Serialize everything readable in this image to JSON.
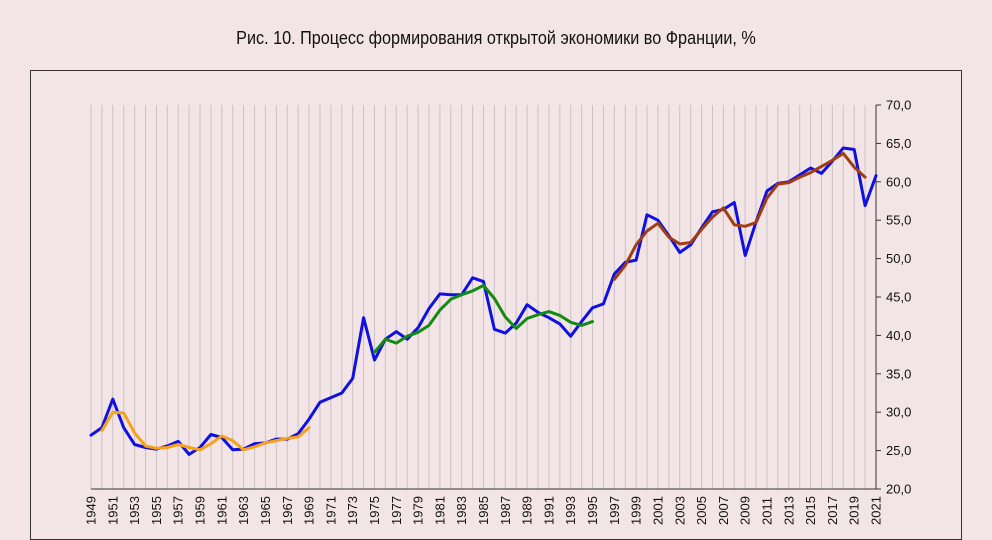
{
  "chart_data": {
    "type": "line",
    "title": "Рис. 10. Процесс формирования открытой экономики во Франции, %",
    "xlabel": "",
    "ylabel": "",
    "ylim": [
      20,
      70
    ],
    "yticks": [
      20,
      25,
      30,
      35,
      40,
      45,
      50,
      55,
      60,
      65,
      70
    ],
    "ytick_labels": [
      "20,0",
      "25,0",
      "30,0",
      "35,0",
      "40,0",
      "45,0",
      "50,0",
      "55,0",
      "60,0",
      "65,0",
      "70,0"
    ],
    "y_axis_side": "right",
    "xlim": [
      1949,
      2021
    ],
    "xtick_labels": [
      "1949",
      "1951",
      "1953",
      "1955",
      "1957",
      "1959",
      "1961",
      "1963",
      "1965",
      "1967",
      "1969",
      "1971",
      "1973",
      "1975",
      "1977",
      "1979",
      "1981",
      "1983",
      "1985",
      "1987",
      "1989",
      "1991",
      "1993",
      "1995",
      "1997",
      "1999",
      "2001",
      "2003",
      "2005",
      "2007",
      "2009",
      "2011",
      "2013",
      "2015",
      "2017",
      "2019",
      "2021"
    ],
    "grid": true,
    "legend": "none",
    "series": [
      {
        "color": "#1010e0",
        "x": [
          1949,
          1950,
          1951,
          1952,
          1953,
          1954,
          1955,
          1956,
          1957,
          1958,
          1959,
          1960,
          1961,
          1962,
          1963,
          1964,
          1965,
          1966,
          1967,
          1968,
          1969,
          1970,
          1971,
          1972,
          1973,
          1974,
          1975,
          1976,
          1977,
          1978,
          1979,
          1980,
          1981,
          1982,
          1983,
          1984,
          1985,
          1986,
          1987,
          1988,
          1989,
          1990,
          1991,
          1992,
          1993,
          1994,
          1995,
          1996,
          1997,
          1998,
          1999,
          2000,
          2001,
          2002,
          2003,
          2004,
          2005,
          2006,
          2007,
          2008,
          2009,
          2010,
          2011,
          2012,
          2013,
          2014,
          2015,
          2016,
          2017,
          2018,
          2019,
          2020,
          2021
        ],
        "values": [
          27.0,
          28.0,
          31.7,
          28.0,
          25.8,
          25.4,
          25.2,
          25.6,
          26.2,
          24.5,
          25.4,
          27.1,
          26.7,
          25.1,
          25.2,
          25.9,
          26.0,
          26.5,
          26.5,
          27.2,
          29.1,
          31.3,
          31.9,
          32.5,
          34.4,
          42.3,
          36.8,
          39.5,
          40.5,
          39.5,
          41.0,
          43.5,
          45.4,
          45.3,
          45.3,
          47.5,
          47.0,
          40.8,
          40.3,
          41.6,
          44.0,
          43.0,
          42.3,
          41.5,
          39.9,
          41.8,
          43.6,
          44.1,
          48.0,
          49.5,
          49.8,
          55.7,
          55.0,
          53.0,
          50.8,
          51.8,
          54.0,
          56.1,
          56.4,
          57.3,
          50.4,
          54.8,
          58.8,
          59.8,
          60.0,
          60.9,
          61.8,
          61.1,
          62.7,
          64.4,
          64.2,
          56.9,
          60.8
        ]
      },
      {
        "color": "#f5a21a",
        "x": [
          1950,
          1951,
          1952,
          1953,
          1954,
          1955,
          1956,
          1957,
          1958,
          1959,
          1960,
          1961,
          1962,
          1963,
          1964,
          1965,
          1966,
          1967,
          1968,
          1969
        ],
        "values": [
          27.6,
          30.0,
          29.9,
          27.3,
          25.6,
          25.3,
          25.4,
          25.8,
          25.4,
          25.1,
          25.9,
          26.9,
          26.3,
          25.1,
          25.5,
          26.0,
          26.3,
          26.6,
          26.8,
          28.0
        ]
      },
      {
        "color": "#148a14",
        "x": [
          1975,
          1976,
          1977,
          1978,
          1979,
          1980,
          1981,
          1982,
          1983,
          1984,
          1985,
          1986,
          1987,
          1988,
          1989,
          1990,
          1991,
          1992,
          1993,
          1994,
          1995
        ],
        "values": [
          37.8,
          39.5,
          39.0,
          39.9,
          40.4,
          41.3,
          43.3,
          44.7,
          45.3,
          45.8,
          46.5,
          44.8,
          42.4,
          40.9,
          42.2,
          42.7,
          43.1,
          42.6,
          41.7,
          41.3,
          41.8
        ]
      },
      {
        "color": "#a23c12",
        "x": [
          1997,
          1998,
          1999,
          2000,
          2001,
          2002,
          2003,
          2004,
          2005,
          2006,
          2007,
          2008,
          2009,
          2010,
          2011,
          2012,
          2013,
          2014,
          2015,
          2016,
          2017,
          2018,
          2019,
          2020
        ],
        "values": [
          47.3,
          49.1,
          51.8,
          53.6,
          54.6,
          52.8,
          51.9,
          52.1,
          53.8,
          55.4,
          56.6,
          54.4,
          54.2,
          54.7,
          57.9,
          59.7,
          59.9,
          60.6,
          61.2,
          62.0,
          62.8,
          63.7,
          61.9,
          60.6
        ]
      }
    ]
  }
}
